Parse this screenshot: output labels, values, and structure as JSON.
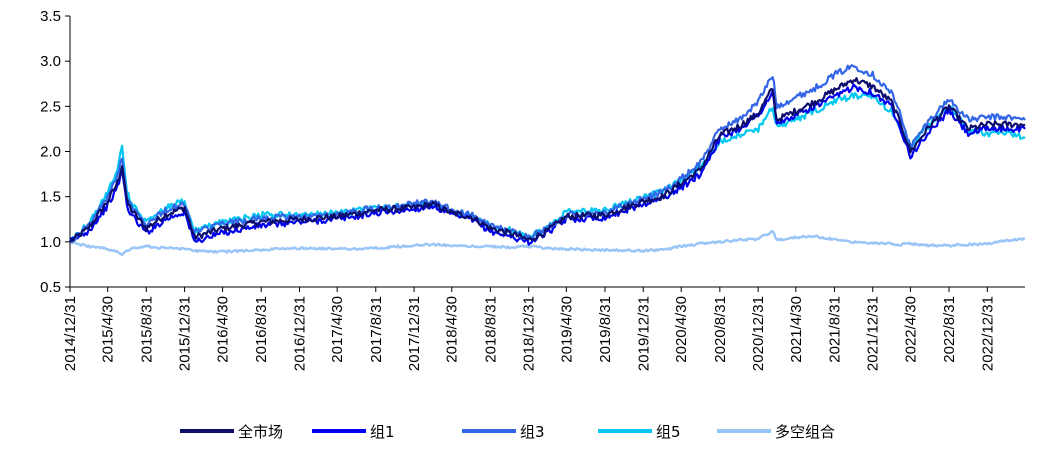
{
  "chart_data": {
    "type": "line",
    "title": "",
    "xlabel": "",
    "ylabel": "",
    "ylim": [
      0.5,
      3.5
    ],
    "yticks": [
      "0.5",
      "1.0",
      "1.5",
      "2.0",
      "2.5",
      "3.0",
      "3.5"
    ],
    "grid": false,
    "legend_position": "bottom",
    "x_ticks": [
      "2014/12/31",
      "2015/4/30",
      "2015/8/31",
      "2015/12/31",
      "2016/4/30",
      "2016/8/31",
      "2016/12/31",
      "2017/4/30",
      "2017/8/31",
      "2017/12/31",
      "2018/4/30",
      "2018/8/31",
      "2018/12/31",
      "2019/4/30",
      "2019/8/31",
      "2019/12/31",
      "2020/4/30",
      "2020/8/31",
      "2020/12/31",
      "2021/4/30",
      "2021/8/31",
      "2021/12/31",
      "2022/4/30",
      "2022/8/31",
      "2022/12/31"
    ],
    "x_end": "2023/4/30",
    "x": [
      "2014/12/31",
      "2015/2/28",
      "2015/4/30",
      "2015/5/31",
      "2015/6/15",
      "2015/6/30",
      "2015/7/15",
      "2015/8/31",
      "2015/10/31",
      "2015/12/31",
      "2016/1/31",
      "2016/4/30",
      "2016/8/31",
      "2016/12/31",
      "2017/4/30",
      "2017/8/31",
      "2017/12/31",
      "2018/2/28",
      "2018/4/30",
      "2018/6/30",
      "2018/8/31",
      "2018/10/31",
      "2018/12/31",
      "2019/2/28",
      "2019/4/30",
      "2019/8/31",
      "2019/12/31",
      "2020/2/29",
      "2020/4/30",
      "2020/6/30",
      "2020/8/31",
      "2020/10/31",
      "2020/12/31",
      "2021/2/15",
      "2021/2/28",
      "2021/4/30",
      "2021/6/30",
      "2021/8/31",
      "2021/10/31",
      "2021/12/31",
      "2022/2/28",
      "2022/3/31",
      "2022/4/30",
      "2022/6/30",
      "2022/8/31",
      "2022/10/31",
      "2022/12/31",
      "2023/2/28",
      "2023/4/30"
    ],
    "series": [
      {
        "name": "全市场",
        "color": "#0d0d6b",
        "values": [
          1.0,
          1.15,
          1.45,
          1.65,
          1.85,
          1.45,
          1.35,
          1.15,
          1.3,
          1.38,
          1.05,
          1.15,
          1.22,
          1.25,
          1.28,
          1.35,
          1.38,
          1.42,
          1.32,
          1.28,
          1.15,
          1.1,
          1.02,
          1.12,
          1.28,
          1.3,
          1.45,
          1.5,
          1.65,
          1.8,
          2.18,
          2.28,
          2.42,
          2.7,
          2.35,
          2.45,
          2.55,
          2.68,
          2.8,
          2.72,
          2.55,
          2.3,
          2.0,
          2.28,
          2.5,
          2.25,
          2.3,
          2.3,
          2.3
        ]
      },
      {
        "name": "组1",
        "color": "#0000ee",
        "values": [
          1.0,
          1.12,
          1.4,
          1.6,
          1.8,
          1.4,
          1.3,
          1.1,
          1.25,
          1.33,
          1.0,
          1.1,
          1.18,
          1.22,
          1.25,
          1.32,
          1.36,
          1.4,
          1.3,
          1.25,
          1.12,
          1.06,
          1.0,
          1.1,
          1.25,
          1.27,
          1.42,
          1.48,
          1.6,
          1.75,
          2.15,
          2.25,
          2.4,
          2.65,
          2.3,
          2.4,
          2.5,
          2.6,
          2.72,
          2.65,
          2.5,
          2.25,
          1.95,
          2.22,
          2.45,
          2.2,
          2.25,
          2.25,
          2.25
        ]
      },
      {
        "name": "组3",
        "color": "#3366e6",
        "values": [
          1.0,
          1.18,
          1.5,
          1.72,
          1.95,
          1.5,
          1.4,
          1.2,
          1.35,
          1.42,
          1.1,
          1.2,
          1.26,
          1.28,
          1.3,
          1.38,
          1.42,
          1.45,
          1.35,
          1.3,
          1.18,
          1.12,
          1.05,
          1.15,
          1.3,
          1.33,
          1.48,
          1.55,
          1.7,
          1.88,
          2.25,
          2.35,
          2.55,
          2.85,
          2.5,
          2.6,
          2.7,
          2.85,
          2.95,
          2.85,
          2.65,
          2.4,
          2.05,
          2.35,
          2.58,
          2.35,
          2.38,
          2.38,
          2.35
        ]
      },
      {
        "name": "组5",
        "color": "#00c8f0",
        "values": [
          1.0,
          1.2,
          1.55,
          1.8,
          2.08,
          1.55,
          1.42,
          1.22,
          1.38,
          1.45,
          1.12,
          1.22,
          1.3,
          1.3,
          1.32,
          1.37,
          1.4,
          1.42,
          1.33,
          1.28,
          1.18,
          1.13,
          1.05,
          1.15,
          1.33,
          1.35,
          1.5,
          1.55,
          1.68,
          1.82,
          2.12,
          2.18,
          2.25,
          2.5,
          2.28,
          2.35,
          2.45,
          2.55,
          2.62,
          2.6,
          2.45,
          2.25,
          2.05,
          2.3,
          2.5,
          2.25,
          2.2,
          2.2,
          2.15
        ]
      },
      {
        "name": "多空组合",
        "color": "#99c5f7",
        "values": [
          1.0,
          0.95,
          0.92,
          0.9,
          0.86,
          0.9,
          0.93,
          0.95,
          0.93,
          0.92,
          0.9,
          0.89,
          0.91,
          0.93,
          0.92,
          0.93,
          0.96,
          0.97,
          0.96,
          0.95,
          0.95,
          0.94,
          0.95,
          0.93,
          0.92,
          0.91,
          0.9,
          0.91,
          0.95,
          0.98,
          1.0,
          1.02,
          1.03,
          1.12,
          1.02,
          1.05,
          1.06,
          1.03,
          1.0,
          0.99,
          0.98,
          0.97,
          0.98,
          0.96,
          0.96,
          0.97,
          0.98,
          1.01,
          1.04
        ]
      }
    ]
  }
}
